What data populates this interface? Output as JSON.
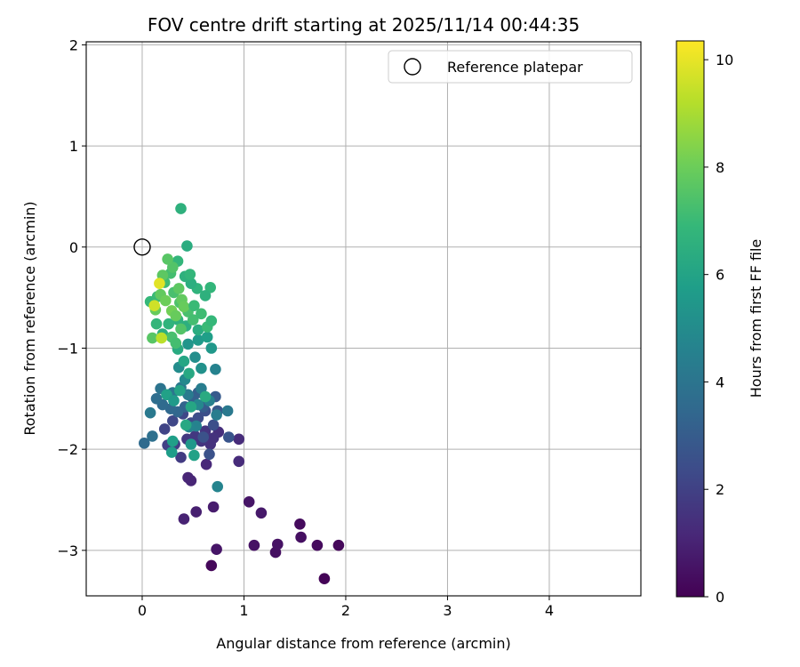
{
  "chart_data": {
    "type": "scatter",
    "title": "FOV centre drift starting at 2025/11/14 00:44:35",
    "xlabel": "Angular distance from reference (arcmin)",
    "ylabel": "Rotation from reference (arcmin)",
    "xlim": [
      -0.55,
      4.9
    ],
    "ylim": [
      -3.45,
      2.03
    ],
    "xticks": [
      0,
      1,
      2,
      3,
      4
    ],
    "yticks": [
      -3,
      -2,
      -1,
      0,
      1,
      2
    ],
    "grid": true,
    "legend": {
      "position": "top-right",
      "entries": [
        "Reference platepar"
      ]
    },
    "reference_point": {
      "name": "Reference platepar",
      "x": 0,
      "y": 0
    },
    "colorbar": {
      "label": "Hours from first FF file",
      "colormap": "viridis",
      "range": [
        0,
        10.35
      ],
      "ticks": [
        0,
        2,
        4,
        6,
        8,
        10
      ]
    },
    "colormap_stops": [
      "#440154",
      "#482878",
      "#3e4a89",
      "#31688e",
      "#26828e",
      "#1f9e89",
      "#35b779",
      "#6ece58",
      "#b5de2b",
      "#fde725"
    ],
    "points": [
      [
        1.79,
        -3.28,
        0.1
      ],
      [
        0.68,
        -3.15,
        0.2
      ],
      [
        1.55,
        -2.74,
        0.3
      ],
      [
        1.93,
        -2.95,
        0.2
      ],
      [
        1.72,
        -2.95,
        0.3
      ],
      [
        1.56,
        -2.87,
        0.4
      ],
      [
        1.31,
        -3.02,
        0.4
      ],
      [
        1.33,
        -2.94,
        0.5
      ],
      [
        1.1,
        -2.95,
        0.5
      ],
      [
        0.73,
        -2.99,
        0.6
      ],
      [
        1.17,
        -2.63,
        0.7
      ],
      [
        1.05,
        -2.52,
        0.6
      ],
      [
        0.7,
        -2.57,
        0.8
      ],
      [
        0.53,
        -2.62,
        0.9
      ],
      [
        0.41,
        -2.69,
        1.0
      ],
      [
        0.48,
        -2.31,
        1.1
      ],
      [
        0.45,
        -2.28,
        1.1
      ],
      [
        0.63,
        -2.15,
        1.2
      ],
      [
        0.95,
        -2.12,
        1.3
      ],
      [
        0.95,
        -1.9,
        1.3
      ],
      [
        0.75,
        -1.83,
        1.4
      ],
      [
        0.7,
        -1.89,
        1.5
      ],
      [
        0.67,
        -1.95,
        1.5
      ],
      [
        0.62,
        -1.82,
        1.6
      ],
      [
        0.58,
        -1.92,
        1.6
      ],
      [
        0.52,
        -1.87,
        1.7
      ],
      [
        0.44,
        -1.9,
        1.7
      ],
      [
        0.38,
        -2.08,
        1.8
      ],
      [
        0.32,
        -1.95,
        1.9
      ],
      [
        0.25,
        -1.96,
        2.0
      ],
      [
        0.22,
        -1.8,
        2.1
      ],
      [
        0.3,
        -1.72,
        2.2
      ],
      [
        0.4,
        -1.65,
        2.2
      ],
      [
        0.48,
        -1.74,
        2.3
      ],
      [
        0.55,
        -1.69,
        2.4
      ],
      [
        0.62,
        -1.62,
        2.5
      ],
      [
        0.7,
        -1.76,
        2.5
      ],
      [
        0.66,
        -2.05,
        2.6
      ],
      [
        0.6,
        -1.88,
        2.6
      ],
      [
        0.85,
        -1.88,
        2.7
      ],
      [
        0.74,
        -1.62,
        2.8
      ],
      [
        0.72,
        -1.48,
        2.9
      ],
      [
        0.6,
        -1.58,
        3.0
      ],
      [
        0.55,
        -1.44,
        3.1
      ],
      [
        0.5,
        -1.5,
        3.2
      ],
      [
        0.42,
        -1.58,
        3.3
      ],
      [
        0.35,
        -1.63,
        3.4
      ],
      [
        0.28,
        -1.6,
        3.5
      ],
      [
        0.2,
        -1.56,
        3.6
      ],
      [
        0.14,
        -1.5,
        3.7
      ],
      [
        0.1,
        -1.87,
        3.8
      ],
      [
        0.02,
        -1.94,
        3.6
      ],
      [
        0.08,
        -1.64,
        4.2
      ],
      [
        0.18,
        -1.4,
        4.0
      ],
      [
        0.3,
        -1.44,
        4.1
      ],
      [
        0.38,
        -1.39,
        4.2
      ],
      [
        0.45,
        -1.46,
        4.3
      ],
      [
        0.58,
        -1.4,
        4.4
      ],
      [
        0.66,
        -1.52,
        4.5
      ],
      [
        0.73,
        -1.66,
        4.4
      ],
      [
        0.53,
        -1.77,
        4.6
      ],
      [
        0.46,
        -1.78,
        4.7
      ],
      [
        0.55,
        -1.56,
        4.8
      ],
      [
        0.42,
        -1.31,
        4.9
      ],
      [
        0.36,
        -1.19,
        5.0
      ],
      [
        0.52,
        -1.09,
        5.1
      ],
      [
        0.58,
        -1.2,
        5.2
      ],
      [
        0.72,
        -1.21,
        4.6
      ],
      [
        0.74,
        -2.37,
        4.7
      ],
      [
        0.84,
        -1.62,
        4.2
      ],
      [
        0.48,
        -1.95,
        5.5
      ],
      [
        0.3,
        -1.92,
        5.8
      ],
      [
        0.29,
        -2.03,
        5.7
      ],
      [
        0.24,
        -1.46,
        5.9
      ],
      [
        0.31,
        -1.52,
        5.6
      ],
      [
        0.37,
        -1.42,
        6.0
      ],
      [
        0.48,
        -1.58,
        6.1
      ],
      [
        0.51,
        -2.06,
        5.9
      ],
      [
        0.43,
        -1.76,
        6.2
      ],
      [
        0.62,
        -1.48,
        6.3
      ],
      [
        0.46,
        -1.25,
        6.2
      ],
      [
        0.41,
        -1.13,
        6.1
      ],
      [
        0.35,
        -1.01,
        6.3
      ],
      [
        0.45,
        -0.96,
        5.4
      ],
      [
        0.55,
        -0.92,
        5.6
      ],
      [
        0.64,
        -0.89,
        5.8
      ],
      [
        0.68,
        -1.0,
        5.5
      ],
      [
        0.55,
        -0.82,
        6.4
      ],
      [
        0.43,
        -0.78,
        6.5
      ],
      [
        0.35,
        -0.72,
        6.6
      ],
      [
        0.26,
        -0.76,
        6.7
      ],
      [
        0.2,
        -0.86,
        6.5
      ],
      [
        0.14,
        -0.76,
        6.8
      ],
      [
        0.08,
        -0.54,
        6.9
      ],
      [
        0.15,
        -0.49,
        7.0
      ],
      [
        0.22,
        -0.35,
        7.1
      ],
      [
        0.28,
        -0.26,
        7.2
      ],
      [
        0.35,
        -0.14,
        6.8
      ],
      [
        0.44,
        0.01,
        6.4
      ],
      [
        0.38,
        0.38,
        6.6
      ],
      [
        0.31,
        -0.45,
        7.3
      ],
      [
        0.37,
        -0.55,
        7.4
      ],
      [
        0.45,
        -0.64,
        7.3
      ],
      [
        0.5,
        -0.72,
        7.2
      ],
      [
        0.58,
        -0.66,
        7.1
      ],
      [
        0.64,
        -0.79,
        7.0
      ],
      [
        0.68,
        -0.73,
        6.9
      ],
      [
        0.67,
        -0.4,
        6.8
      ],
      [
        0.62,
        -0.48,
        6.6
      ],
      [
        0.54,
        -0.41,
        6.7
      ],
      [
        0.48,
        -0.36,
        6.5
      ],
      [
        0.42,
        -0.29,
        6.6
      ],
      [
        0.47,
        -0.27,
        6.8
      ],
      [
        0.3,
        -0.2,
        7.5
      ],
      [
        0.25,
        -0.12,
        7.6
      ],
      [
        0.2,
        -0.28,
        7.7
      ],
      [
        0.18,
        -0.47,
        7.8
      ],
      [
        0.13,
        -0.62,
        7.9
      ],
      [
        0.1,
        -0.9,
        7.6
      ],
      [
        0.23,
        -0.53,
        8.0
      ],
      [
        0.29,
        -0.63,
        8.1
      ],
      [
        0.33,
        -0.68,
        7.9
      ],
      [
        0.39,
        -0.52,
        7.8
      ],
      [
        0.36,
        -0.41,
        7.7
      ],
      [
        0.41,
        -0.59,
        7.9
      ],
      [
        0.38,
        -0.81,
        7.5
      ],
      [
        0.29,
        -0.89,
        7.3
      ],
      [
        0.51,
        -0.58,
        7.0
      ],
      [
        0.33,
        -0.95,
        7.2
      ],
      [
        0.17,
        -0.36,
        9.9
      ],
      [
        0.12,
        -0.58,
        9.6
      ],
      [
        0.19,
        -0.9,
        9.3
      ]
    ]
  }
}
